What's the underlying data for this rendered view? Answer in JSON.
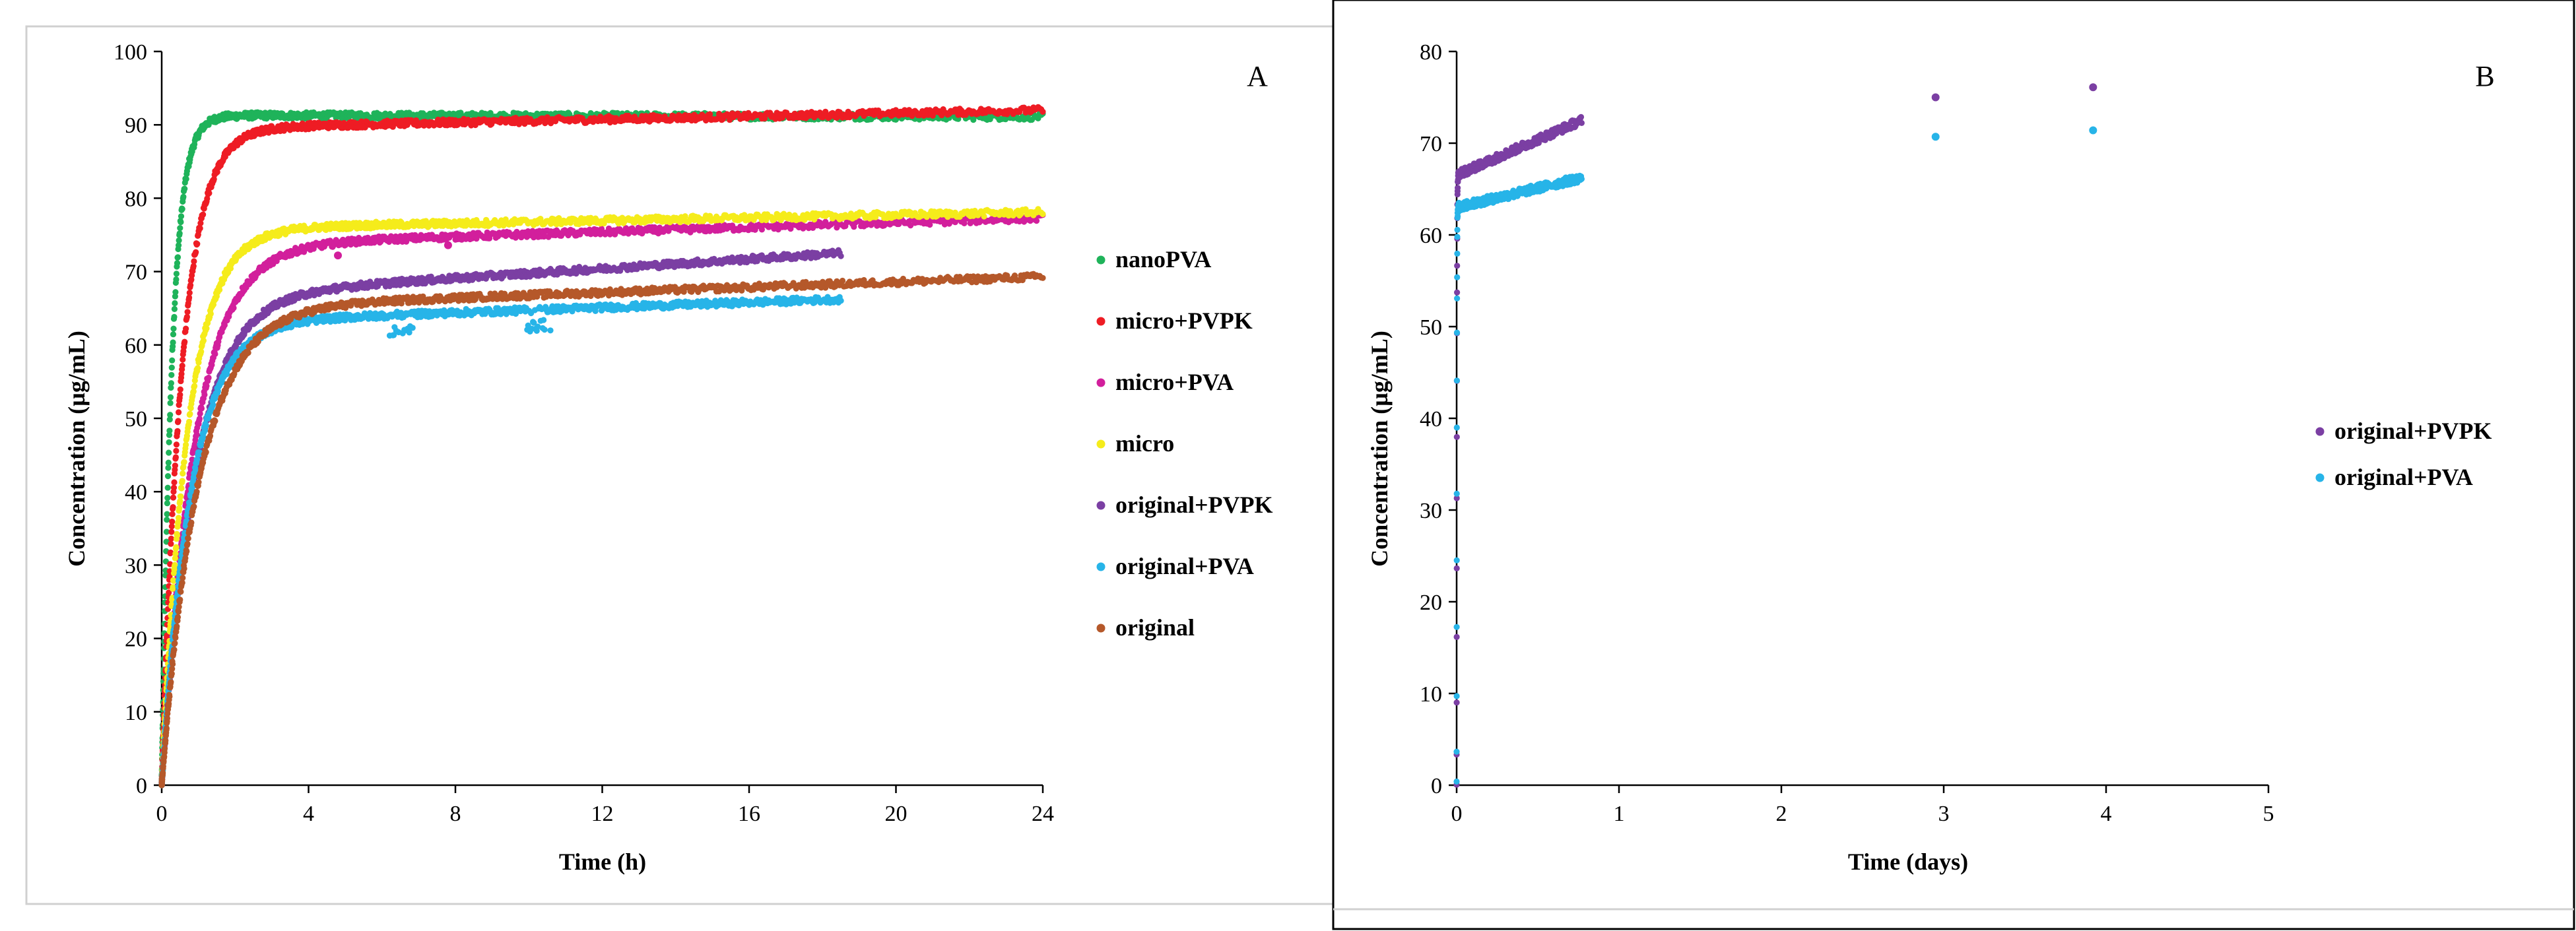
{
  "panels": {
    "a_letter": "A",
    "b_letter": "B"
  },
  "colors": {
    "nanoPVA": "#1fb35a",
    "microPVPK": "#ee1c24",
    "microPVA": "#d21f9c",
    "micro": "#f5ec1b",
    "originalPVPK": "#7b3fa3",
    "originalPVA": "#27b4e8",
    "original": "#b5582a"
  },
  "chart_data": [
    {
      "type": "scatter",
      "title": "A",
      "xlabel": "Time (h)",
      "ylabel": "Concentration (µg/mL)",
      "xlim": [
        0,
        24
      ],
      "ylim": [
        0,
        100
      ],
      "xticks": [
        0,
        4,
        8,
        12,
        16,
        20,
        24
      ],
      "yticks": [
        0,
        10,
        20,
        30,
        40,
        50,
        60,
        70,
        80,
        90,
        100
      ],
      "legend_position": "right",
      "series": [
        {
          "name": "nanoPVA",
          "color_key": "nanoPVA",
          "x_end": 24,
          "plateau": 91.3,
          "tau": 0.28,
          "drift": -0.2
        },
        {
          "name": "micro+PVPK",
          "color_key": "microPVPK",
          "x_end": 24,
          "plateau": 89.5,
          "tau": 0.55,
          "drift": 2.5
        },
        {
          "name": "micro+PVA",
          "color_key": "microPVA",
          "x_end": 24,
          "plateau": 73.5,
          "tau": 0.9,
          "drift": 3.8,
          "outliers": [
            [
              4.8,
              72.2
            ],
            [
              7.8,
              73.6
            ]
          ]
        },
        {
          "name": "micro",
          "color_key": "micro",
          "x_end": 24,
          "plateau": 75.8,
          "tau": 0.7,
          "drift": 2.3
        },
        {
          "name": "original+PVPK",
          "color_key": "originalPVPK",
          "x_end": 18.5,
          "plateau": 66.5,
          "tau": 0.9,
          "drift": 7.8
        },
        {
          "name": "original+PVA",
          "color_key": "originalPVA",
          "x_end": 18.5,
          "plateau": 63.0,
          "tau": 0.8,
          "drift": 4.2,
          "dips": [
            6.5,
            10.3
          ]
        },
        {
          "name": "original",
          "color_key": "original",
          "x_end": 24,
          "plateau": 65.0,
          "tau": 1.0,
          "drift": 4.3
        }
      ]
    },
    {
      "type": "scatter",
      "title": "B",
      "xlabel": "Time (days)",
      "ylabel": "Concentration (µg/mL)",
      "xlim": [
        0,
        5
      ],
      "ylim": [
        0,
        80
      ],
      "xticks": [
        0,
        1,
        2,
        3,
        4,
        5
      ],
      "yticks": [
        0,
        10,
        20,
        30,
        40,
        50,
        60,
        70,
        80
      ],
      "legend_position": "right",
      "series": [
        {
          "name": "original+PVPK",
          "color_key": "originalPVPK",
          "x_end": 0.77,
          "plateau": 66.5,
          "tau": 0.0375,
          "drift": 7.8,
          "x_scale": 24,
          "late_points": [
            [
              2.95,
              75.0
            ],
            [
              3.92,
              76.1
            ]
          ]
        },
        {
          "name": "original+PVA",
          "color_key": "originalPVA",
          "x_end": 0.77,
          "plateau": 63.0,
          "tau": 0.0333,
          "drift": 4.2,
          "x_scale": 24,
          "late_points": [
            [
              2.95,
              70.7
            ],
            [
              3.92,
              71.4
            ]
          ]
        }
      ]
    }
  ]
}
